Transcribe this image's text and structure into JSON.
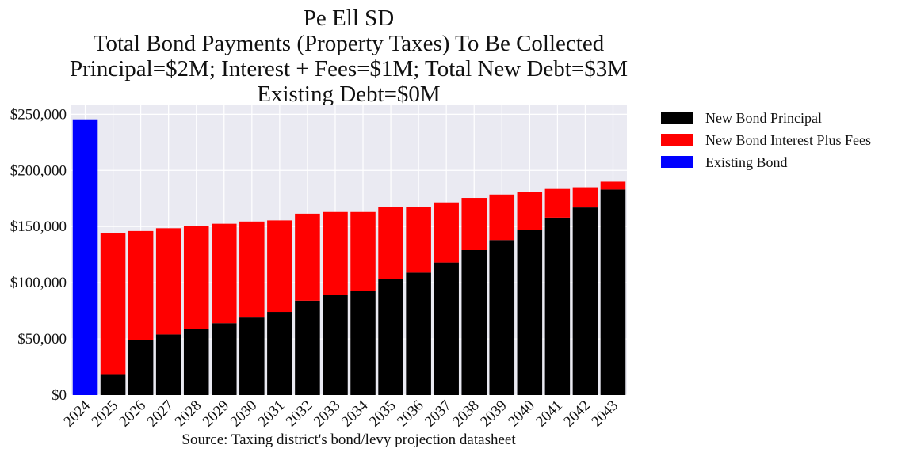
{
  "chart_data": {
    "type": "bar",
    "stacked": true,
    "title_lines": [
      "Pe Ell SD",
      "Total Bond Payments (Property Taxes) To Be Collected",
      "Principal=$2M; Interest + Fees=$1M; Total New Debt=$3M",
      "Existing Debt=$0M"
    ],
    "source": "Source: Taxing district's bond/levy projection datasheet",
    "categories": [
      "2024",
      "2025",
      "2026",
      "2027",
      "2028",
      "2029",
      "2030",
      "2031",
      "2032",
      "2033",
      "2034",
      "2035",
      "2036",
      "2037",
      "2038",
      "2039",
      "2040",
      "2041",
      "2042",
      "2043"
    ],
    "series": [
      {
        "name": "New Bond Principal",
        "color": "#000000",
        "values": [
          0,
          18000,
          49000,
          54000,
          59000,
          64000,
          69000,
          74000,
          84000,
          89000,
          93000,
          103000,
          109000,
          118000,
          129000,
          138000,
          147000,
          158000,
          167000,
          183000
        ]
      },
      {
        "name": "New Bond Interest Plus Fees",
        "color": "#ff0000",
        "values": [
          0,
          126500,
          97000,
          94500,
          91500,
          88500,
          85500,
          81500,
          77500,
          74000,
          70000,
          64500,
          58700,
          53500,
          46500,
          40500,
          33500,
          25500,
          18000,
          7000
        ]
      },
      {
        "name": "Existing Bond",
        "color": "#0000ff",
        "values": [
          245500,
          0,
          0,
          0,
          0,
          0,
          0,
          0,
          0,
          0,
          0,
          0,
          0,
          0,
          0,
          0,
          0,
          0,
          0,
          0
        ]
      }
    ],
    "yticks": [
      "$0",
      "$50,000",
      "$100,000",
      "$150,000",
      "$200,000",
      "$250,000"
    ],
    "ytick_values": [
      0,
      50000,
      100000,
      150000,
      200000,
      250000
    ],
    "ylim": [
      0,
      258000
    ],
    "grid": true,
    "legend_position": "outside-right"
  }
}
